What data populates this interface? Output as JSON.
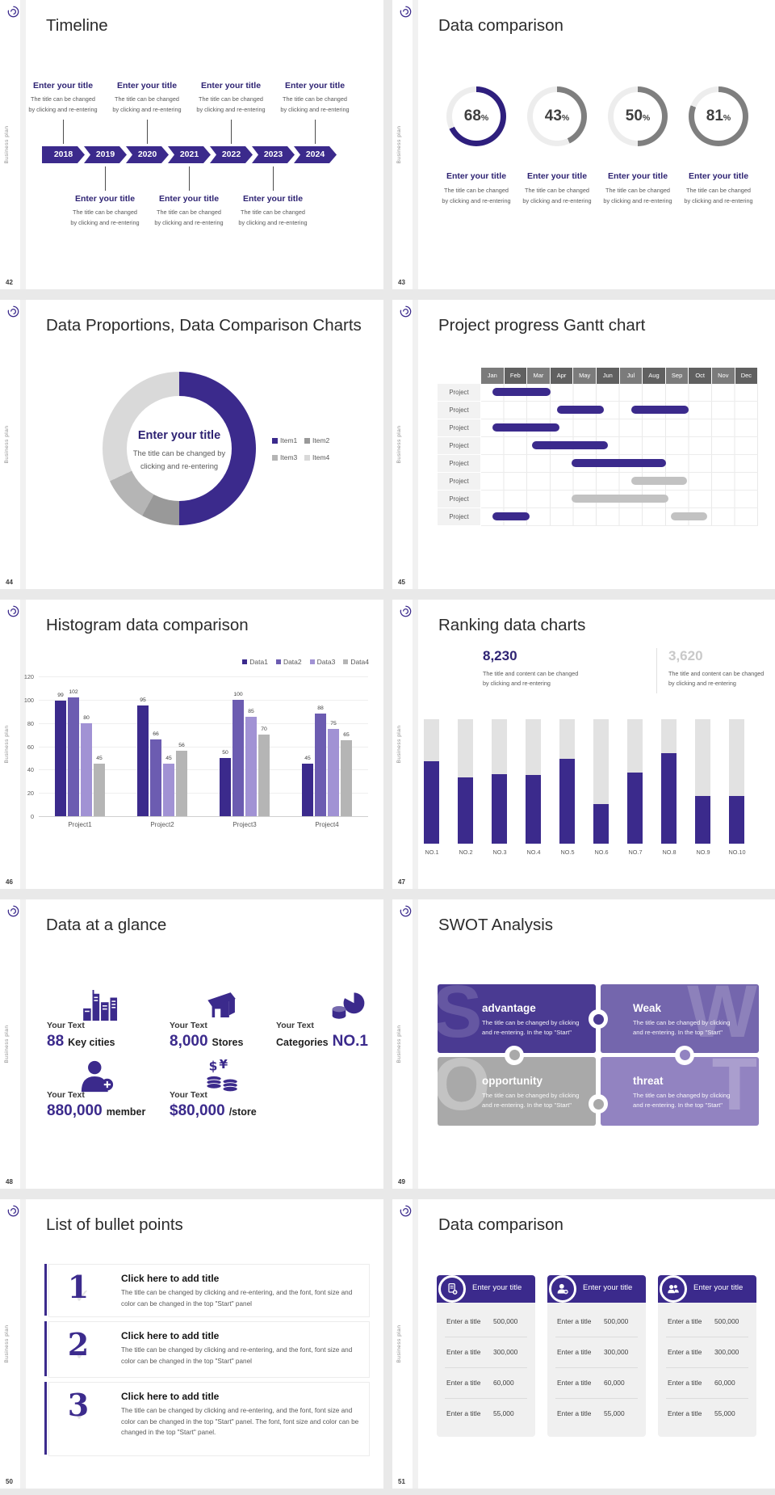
{
  "global": {
    "brand_vertical_text": "Business plan",
    "colors": {
      "primary": "#3b2a8c",
      "primary_dark": "#2e1f7d",
      "title_indigo": "#2e2373",
      "purple_mid": "#6c5cb1",
      "purple_light": "#a192d4",
      "gray_bar": "#b5b5b5",
      "gray_light": "#d9d9d9",
      "track": "#ededed",
      "body_text": "#595959",
      "title_text": "#2b2b2b"
    }
  },
  "slides": [
    {
      "page": "42",
      "title": "Timeline",
      "timeline": {
        "years": [
          "2018",
          "2019",
          "2020",
          "2021",
          "2022",
          "2023",
          "2024"
        ],
        "top_positions": [
          0,
          2,
          4,
          6
        ],
        "bottom_positions": [
          1,
          3,
          5
        ],
        "item_title": "Enter your title",
        "item_desc": [
          "The title can be changed",
          "by clicking and re-entering"
        ]
      }
    },
    {
      "page": "43",
      "title": "Data comparison",
      "item_title": "Enter your title",
      "item_desc": [
        "The title can be changed",
        "by clicking and re-entering"
      ],
      "chart_data": {
        "type": "pie",
        "donuts": [
          {
            "value": "68",
            "unit": "%",
            "pct": 68,
            "color": "#2e1f7d"
          },
          {
            "value": "43",
            "unit": "%",
            "pct": 43,
            "color": "#7f7f7f"
          },
          {
            "value": "50",
            "unit": "%",
            "pct": 50,
            "color": "#7f7f7f"
          },
          {
            "value": "81",
            "unit": "%",
            "pct": 81,
            "color": "#7f7f7f"
          }
        ]
      }
    },
    {
      "page": "44",
      "title": "Data Proportions, Data Comparison Charts",
      "donut": {
        "center_title": "Enter your title",
        "center_desc": "The title can be changed by clicking and re-entering",
        "segments": [
          {
            "label": "Item1",
            "pct": 50,
            "color": "#3b2a8c"
          },
          {
            "label": "Item2",
            "pct": 8,
            "color": "#999999"
          },
          {
            "label": "Item3",
            "pct": 10,
            "color": "#b5b5b5"
          },
          {
            "label": "Item4",
            "pct": 32,
            "color": "#d9d9d9"
          }
        ]
      }
    },
    {
      "page": "45",
      "title": "Project progress Gantt chart",
      "gantt": {
        "months": [
          "Jan",
          "Feb",
          "Mar",
          "Apr",
          "May",
          "Jun",
          "Jul",
          "Aug",
          "Sep",
          "Oct",
          "Nov",
          "Dec"
        ],
        "row_label": "Project",
        "rows": [
          {
            "bars": [
              {
                "start": 0.5,
                "end": 3.0,
                "type": "purple"
              }
            ]
          },
          {
            "bars": [
              {
                "start": 3.3,
                "end": 5.3,
                "type": "purple"
              },
              {
                "start": 6.5,
                "end": 9.0,
                "type": "purple"
              }
            ]
          },
          {
            "bars": [
              {
                "start": 0.5,
                "end": 3.4,
                "type": "purple"
              }
            ]
          },
          {
            "bars": [
              {
                "start": 2.2,
                "end": 5.5,
                "type": "purple"
              }
            ]
          },
          {
            "bars": [
              {
                "start": 3.9,
                "end": 8.0,
                "type": "purple"
              }
            ]
          },
          {
            "bars": [
              {
                "start": 6.5,
                "end": 8.9,
                "type": "gray"
              }
            ]
          },
          {
            "bars": [
              {
                "start": 3.9,
                "end": 8.1,
                "type": "gray"
              }
            ]
          },
          {
            "bars": [
              {
                "start": 0.5,
                "end": 2.1,
                "type": "purple"
              },
              {
                "start": 8.2,
                "end": 9.8,
                "type": "gray"
              }
            ]
          }
        ]
      }
    },
    {
      "page": "46",
      "title": "Histogram data comparison",
      "chart_data": {
        "type": "bar",
        "categories": [
          "Project1",
          "Project2",
          "Project3",
          "Project4"
        ],
        "series": [
          {
            "name": "Data1",
            "color": "#3b2a8c",
            "values": [
              99,
              95,
              50,
              45
            ]
          },
          {
            "name": "Data2",
            "color": "#6c5cb1",
            "values": [
              102,
              66,
              100,
              88
            ]
          },
          {
            "name": "Data3",
            "color": "#a192d4",
            "values": [
              80,
              45,
              85,
              75
            ]
          },
          {
            "name": "Data4",
            "color": "#b5b5b5",
            "values": [
              45,
              56,
              70,
              65
            ]
          }
        ],
        "ylim": [
          0,
          120
        ],
        "ystep": 20,
        "grid": true,
        "legend_position": "top-right"
      }
    },
    {
      "page": "47",
      "title": "Ranking data charts",
      "stats": [
        {
          "value": "8,230",
          "color": "#2e2373",
          "desc": [
            "The title and content can be changed",
            "by clicking and re-entering"
          ]
        },
        {
          "value": "3,620",
          "color": "#c9c9c9",
          "desc": [
            "The title and content can be changed",
            "by clicking and re-entering"
          ]
        }
      ],
      "chart_data": {
        "type": "bar",
        "categories": [
          "NO.1",
          "NO.2",
          "NO.3",
          "NO.4",
          "NO.5",
          "NO.6",
          "NO.7",
          "NO.8",
          "NO.9",
          "NO.10"
        ],
        "fill_pct": [
          66,
          53,
          56,
          55,
          68,
          32,
          57,
          73,
          38,
          38
        ],
        "bar_color": "#3b2a8c",
        "track_color": "#e2e2e2"
      }
    },
    {
      "page": "48",
      "title": "Data at a glance",
      "stats": [
        {
          "icon": "city-buildings-icon",
          "label": "Your Text",
          "value": "88",
          "suffix": "Key cities"
        },
        {
          "icon": "store-icon",
          "label": "Your Text",
          "value": "8,000",
          "suffix": "Stores"
        },
        {
          "icon": "pie-database-icon",
          "label": "Your Text",
          "prefix": "Categories",
          "value": "NO.1"
        },
        {
          "icon": "member-add-icon",
          "label": "Your Text",
          "value": "880,000",
          "suffix": "member"
        },
        {
          "icon": "coins-icon",
          "label": "Your Text",
          "value": "$80,000",
          "suffix": "/store"
        }
      ]
    },
    {
      "page": "49",
      "title": "SWOT Analysis",
      "swot": [
        {
          "letter": "S",
          "title": "advantage",
          "desc": "The title can be changed by clicking and re-entering. In the top \"Start\"",
          "color": "#4a3a92",
          "letter_side": "left",
          "letter_alpha": 0.15
        },
        {
          "letter": "W",
          "title": "Weak",
          "desc": "The title can be changed by clicking and re-entering. In the top \"Start\"",
          "color": "#7466ad",
          "letter_side": "right",
          "letter_alpha": 0.18
        },
        {
          "letter": "O",
          "title": "opportunity",
          "desc": "The title can be changed by clicking and re-entering. In the top \"Start\"",
          "color": "#a9a9a9",
          "letter_side": "left",
          "letter_alpha": 0.3
        },
        {
          "letter": "T",
          "title": "threat",
          "desc": "The title can be changed by clicking and re-entering. In the top \"Start\"",
          "color": "#9283c1",
          "letter_side": "right",
          "letter_alpha": 0.22
        }
      ]
    },
    {
      "page": "50",
      "title": "List of bullet points",
      "bullets": [
        {
          "num": "1",
          "title": "Click here to add title",
          "desc": "The title can be changed by clicking and re-entering, and the font, font size and color can be changed in the top \"Start\" panel"
        },
        {
          "num": "2",
          "title": "Click here to add title",
          "desc": "The title can be changed by clicking and re-entering, and the font, font size and color can be changed in the top \"Start\" panel"
        },
        {
          "num": "3",
          "title": "Click here to add title",
          "desc": "The title can be changed by clicking and re-entering, and the font, font size and color can be changed in the top \"Start\" panel. The font, font size and color can be changed in the top \"Start\" panel."
        }
      ]
    },
    {
      "page": "51",
      "title": "Data comparison",
      "cards": [
        {
          "icon": "document-add-icon",
          "header": "Enter your title",
          "rows": [
            {
              "label": "Enter a title",
              "value": "500,000"
            },
            {
              "label": "Enter a title",
              "value": "300,000"
            },
            {
              "label": "Enter a title",
              "value": "60,000"
            },
            {
              "label": "Enter a title",
              "value": "55,000"
            }
          ]
        },
        {
          "icon": "person-add-icon",
          "header": "Enter your title",
          "rows": [
            {
              "label": "Enter a title",
              "value": "500,000"
            },
            {
              "label": "Enter a title",
              "value": "300,000"
            },
            {
              "label": "Enter a title",
              "value": "60,000"
            },
            {
              "label": "Enter a title",
              "value": "55,000"
            }
          ]
        },
        {
          "icon": "people-group-icon",
          "header": "Enter your title",
          "rows": [
            {
              "label": "Enter a title",
              "value": "500,000"
            },
            {
              "label": "Enter a title",
              "value": "300,000"
            },
            {
              "label": "Enter a title",
              "value": "60,000"
            },
            {
              "label": "Enter a title",
              "value": "55,000"
            }
          ]
        }
      ]
    }
  ]
}
